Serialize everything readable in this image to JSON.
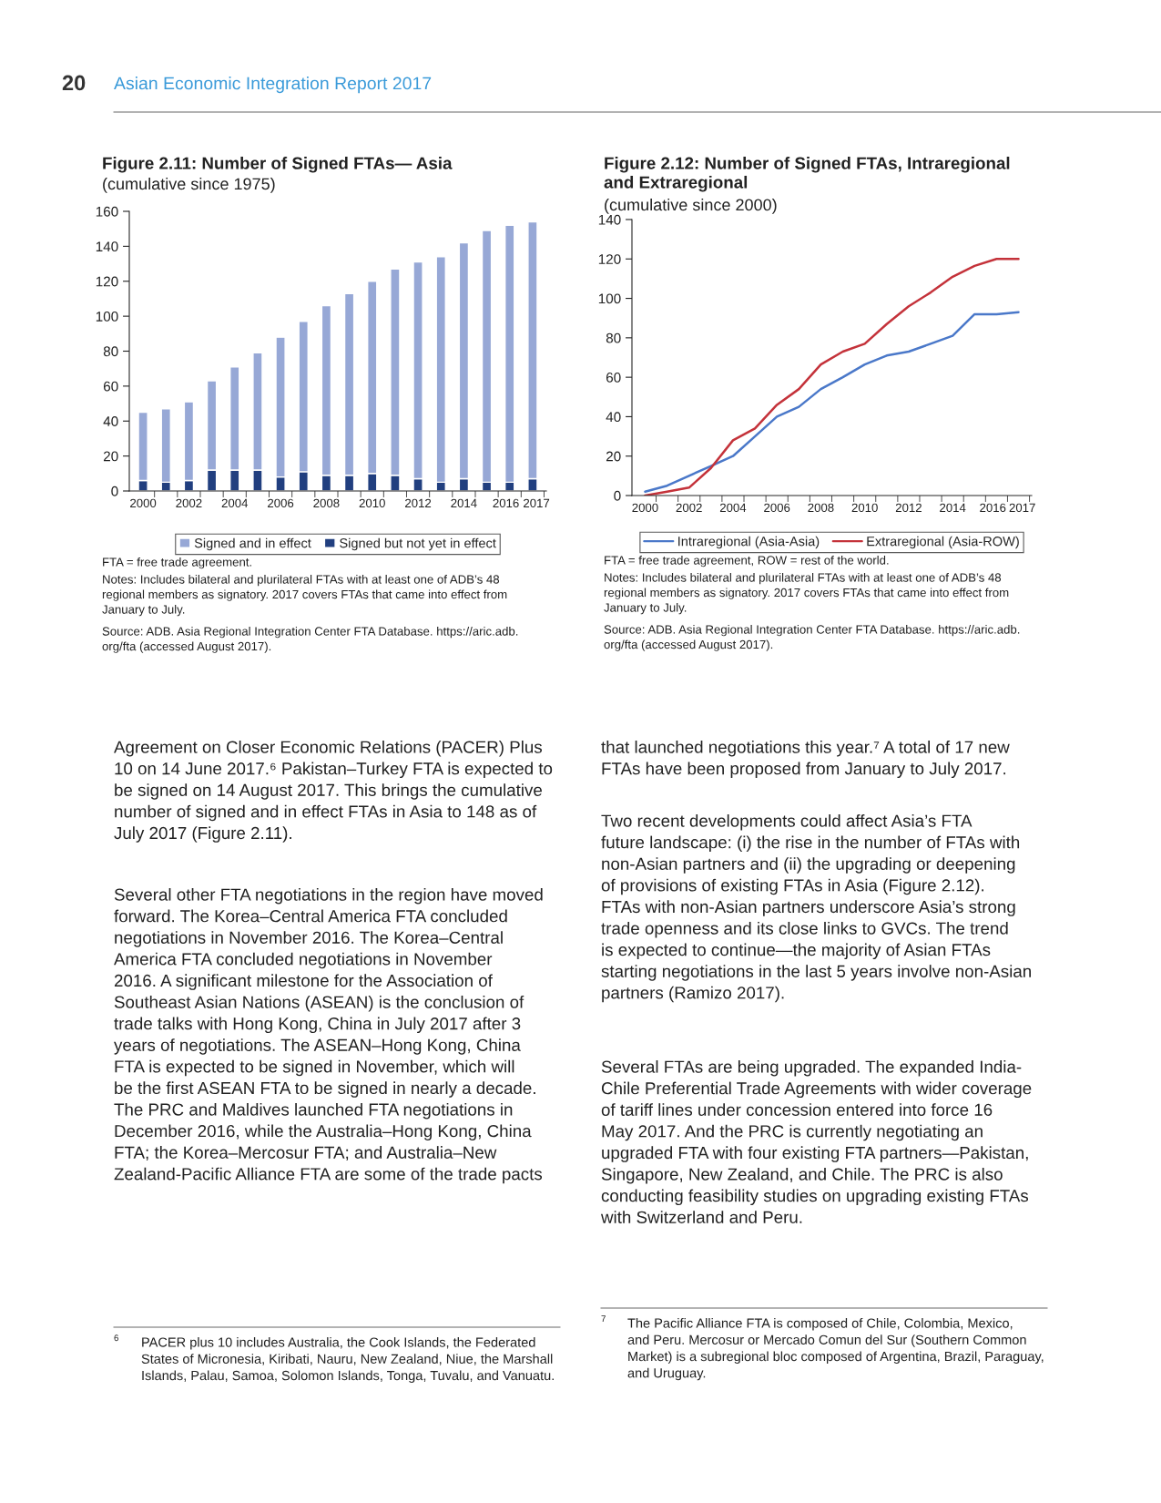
{
  "chart_data": [
    {
      "type": "bar",
      "title": "Figure 2.11: Number of Signed FTAs— Asia",
      "subtitle": "(cumulative since 1975)",
      "categories": [
        "2000",
        null,
        "2002",
        null,
        "2004",
        null,
        "2006",
        null,
        "2008",
        null,
        "2010",
        null,
        "2012",
        null,
        "2014",
        null,
        "2016",
        "2017"
      ],
      "stacked": true,
      "series": [
        {
          "name": "Signed but not yet in effect",
          "color": "#213f7f",
          "values": [
            6,
            5,
            6,
            12,
            12,
            12,
            8,
            11,
            9,
            9,
            10,
            9,
            7,
            5,
            7,
            5,
            5,
            7
          ]
        },
        {
          "name": "Signed and in effect",
          "color": "#97a8d6",
          "values": [
            39,
            42,
            45,
            51,
            59,
            67,
            80,
            86,
            97,
            104,
            110,
            118,
            124,
            129,
            135,
            144,
            147,
            147
          ]
        }
      ],
      "ylim": [
        0,
        160
      ],
      "yticks": [
        0,
        20,
        40,
        60,
        80,
        100,
        120,
        140,
        160
      ],
      "grid": false,
      "legend": "bottom",
      "annotations": [
        "FTA = free trade agreement.",
        "Notes: Includes bilateral and plurilateral FTAs with at least one of ADB’s 48\nregional members as signatory. 2017 covers FTAs that came into effect from\nJanuary to July.",
        "Source: ADB. Asia Regional Integration Center FTA Database. https://aric.adb.\norg/fta (accessed August 2017)."
      ]
    },
    {
      "type": "line",
      "title": "Figure 2.12: Number of Signed FTAs, Intraregional\nand Extraregional",
      "subtitle": "(cumulative since 2000)",
      "categories": [
        "2000",
        null,
        "2002",
        null,
        "2004",
        null,
        "2006",
        null,
        "2008",
        null,
        "2010",
        null,
        "2012",
        null,
        "2014",
        null,
        "2016",
        "2017"
      ],
      "series": [
        {
          "name": "Intraregional (Asia-Asia)",
          "color": "#4a78c9",
          "values": [
            2,
            5,
            10,
            15,
            20,
            30,
            40,
            45,
            54,
            60,
            66.5,
            71,
            73,
            77,
            81,
            92,
            92,
            93
          ]
        },
        {
          "name": "Extraregional (Asia-ROW)",
          "color": "#c4323a",
          "values": [
            0,
            2,
            4,
            14,
            28,
            34,
            46,
            54,
            66.5,
            73,
            77,
            87,
            96,
            103,
            111,
            116.5,
            120,
            120
          ]
        }
      ],
      "ylim": [
        0,
        140
      ],
      "yticks": [
        0,
        20,
        40,
        60,
        80,
        100,
        120,
        140
      ],
      "grid": false,
      "legend": "bottom",
      "marker": "none",
      "line_style": "solid",
      "annotations": [
        "FTA = free trade agreement, ROW = rest of the world.",
        "Notes: Includes bilateral and plurilateral FTAs with at least one of ADB’s 48\nregional members as signatory. 2017 covers FTAs that came into effect from\nJanuary to July.",
        "Source: ADB. Asia Regional Integration Center FTA Database. https://aric.adb.\norg/fta (accessed August 2017)."
      ]
    },
    {
      "type": "other",
      "annotations": [
        "20",
        "Asian Economic Integration Report 2017",
        "Agreement on Closer Economic Relations (PACER) Plus\n10 on 14 June 2017.⁶ Pakistan–Turkey FTA is expected to\nbe signed on 14 August 2017. This brings the cumulative\nnumber of signed and in effect FTAs in Asia to 148 as of\nJuly 2017 (Figure 2.11).",
        "Several other FTA negotiations in the region have moved\nforward. The Korea–Central America FTA concluded\nnegotiations in November 2016. The Korea–Central\nAmerica FTA concluded negotiations in November\n2016. A significant milestone for the Association of\nSoutheast Asian Nations (ASEAN) is the conclusion of\ntrade talks with Hong Kong, China in July 2017 after 3\nyears of negotiations. The ASEAN–Hong Kong, China\nFTA is expected to be signed in November, which will\nbe the first ASEAN FTA to be signed in nearly a decade.\nThe PRC and Maldives launched FTA negotiations in\nDecember 2016, while the Australia–Hong Kong, China\nFTA; the Korea–Mercosur FTA; and Australia–New\nZealand-Pacific Alliance FTA are some of the trade pacts",
        "that launched negotiations this year.⁷ A total of 17 new\nFTAs have been proposed from January to July 2017.",
        "Two recent developments could affect Asia’s FTA\nfuture landscape: (i) the rise in the number of FTAs with\nnon-Asian partners and (ii) the upgrading or deepening\nof provisions of existing FTAs in Asia (Figure 2.12).\nFTAs with non-Asian partners underscore Asia’s strong\ntrade openness and its close links to GVCs. The trend\nis expected to continue—the majority of Asian FTAs\nstarting negotiations in the last 5 years involve non-Asian\npartners (Ramizo 2017).",
        "Several FTAs are being upgraded. The expanded India-\nChile Preferential Trade Agreements with wider coverage\nof tariff lines under concession entered into force 16\nMay 2017. And the PRC is currently negotiating an\nupgraded FTA with four existing FTA partners—Pakistan,\nSingapore, New Zealand, and Chile. The PRC is also\nconducting feasibility studies on upgrading existing FTAs\nwith Switzerland and Peru.",
        "6",
        "PACER plus 10 includes Australia, the Cook Islands, the Federated\nStates of Micronesia, Kiribati, Nauru, New Zealand, Niue, the Marshall\nIslands, Palau, Samoa, Solomon Islands, Tonga, Tuvalu, and Vanuatu.",
        "7",
        "The Pacific Alliance FTA is composed of Chile, Colombia, Mexico,\nand Peru. Mercosur or Mercado Comun del Sur (Southern Common\nMarket) is a subregional bloc composed of Argentina, Brazil, Paraguay,\nand Uruguay."
      ]
    }
  ]
}
